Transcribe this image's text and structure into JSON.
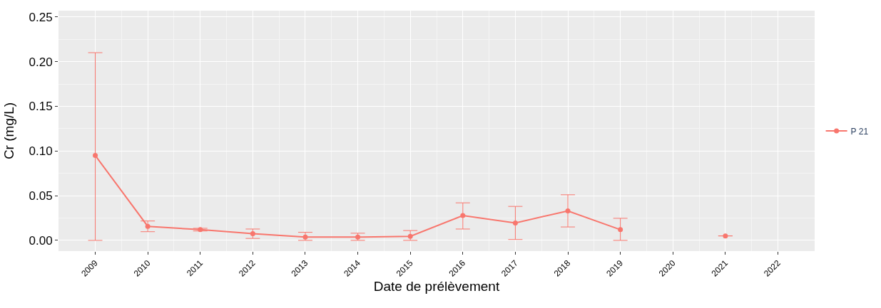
{
  "chart_data": {
    "type": "line",
    "xlabel": "Date de prélèvement",
    "ylabel": "Cr (mg/L)",
    "categories": [
      "2009",
      "2010",
      "2011",
      "2012",
      "2013",
      "2014",
      "2015",
      "2016",
      "2017",
      "2018",
      "2019",
      "2020",
      "2021",
      "2022"
    ],
    "series": [
      {
        "name": "P 21",
        "color": "#f8766d",
        "values": [
          0.095,
          0.0157,
          0.012,
          0.0075,
          0.0037,
          0.0037,
          0.0045,
          0.0277,
          0.0195,
          0.033,
          0.012,
          null,
          0.005,
          null
        ],
        "errors": [
          [
            0,
            0.21
          ],
          [
            0.0097,
            0.0217
          ],
          [
            0.0105,
            0.0135
          ],
          [
            0.0022,
            0.0127
          ],
          [
            0,
            0.009
          ],
          [
            0,
            0.008
          ],
          [
            0,
            0.011
          ],
          [
            0.0127,
            0.042
          ],
          [
            0.001,
            0.038
          ],
          [
            0.015,
            0.051
          ],
          [
            0,
            0.0247
          ],
          null,
          null,
          null
        ]
      }
    ],
    "ylim": [
      -0.012,
      0.257
    ],
    "yticks": [
      {
        "value": 0,
        "label": "0.00"
      },
      {
        "value": 0.05,
        "label": "0.05"
      },
      {
        "value": 0.1,
        "label": "0.10"
      },
      {
        "value": 0.15,
        "label": "0.15"
      },
      {
        "value": 0.2,
        "label": "0.20"
      },
      {
        "value": 0.25,
        "label": "0.25"
      }
    ],
    "grid": true,
    "legend": "right",
    "marker": "circle",
    "line_style": "solid"
  }
}
